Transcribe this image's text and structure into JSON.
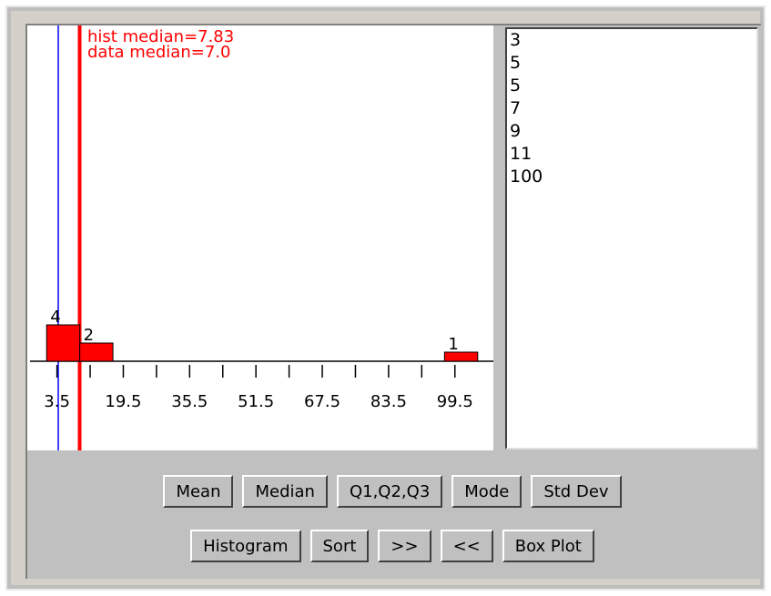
{
  "histogram": {
    "type": "histogram",
    "annotations": [
      "hist median=7.83",
      "data median=7.0"
    ],
    "bins": [
      1,
      9,
      17,
      25,
      33,
      41,
      49,
      57,
      65,
      73,
      81,
      89,
      97,
      105
    ],
    "counts": [
      4,
      2,
      0,
      0,
      0,
      0,
      0,
      0,
      0,
      0,
      0,
      0,
      1
    ],
    "color": "#ff0000",
    "xlim": [
      -3,
      109
    ],
    "xticks": [
      3.5,
      19.5,
      35.5,
      51.5,
      67.5,
      83.5,
      99.5
    ],
    "xminor_ticks": [
      11.5,
      27.5,
      43.5,
      59.5,
      75.5,
      91.5
    ]
  },
  "data_list": [
    "3",
    "5",
    "5",
    "7",
    "9",
    "11",
    "100"
  ],
  "buttons": [
    [
      "Mean",
      "Median",
      "Q1,Q2,Q3",
      "Mode",
      "Std Dev"
    ],
    [
      "Histogram",
      "Sort",
      ">>",
      "<<",
      "Box Plot"
    ]
  ]
}
